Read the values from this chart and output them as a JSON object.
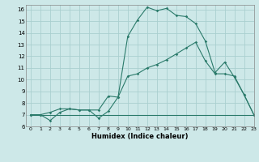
{
  "xlabel": "Humidex (Indice chaleur)",
  "background_color": "#cde8e8",
  "grid_color": "#aacfcf",
  "line_color": "#2a7a6a",
  "xlim": [
    -0.5,
    23
  ],
  "ylim": [
    6,
    16.4
  ],
  "xticks": [
    0,
    1,
    2,
    3,
    4,
    5,
    6,
    7,
    8,
    9,
    10,
    11,
    12,
    13,
    14,
    15,
    16,
    17,
    18,
    19,
    20,
    21,
    22,
    23
  ],
  "yticks": [
    6,
    7,
    8,
    9,
    10,
    11,
    12,
    13,
    14,
    15,
    16
  ],
  "line1_x": [
    0,
    1,
    2,
    3,
    4,
    5,
    6,
    7,
    8,
    9,
    10,
    11,
    12,
    13,
    14,
    15,
    16,
    17,
    18,
    19,
    20,
    21,
    22,
    23
  ],
  "line1_y": [
    7.0,
    7.0,
    7.0,
    7.0,
    7.0,
    7.0,
    7.0,
    7.0,
    7.0,
    7.0,
    7.0,
    7.0,
    7.0,
    7.0,
    7.0,
    7.0,
    7.0,
    7.0,
    7.0,
    7.0,
    7.0,
    7.0,
    7.0,
    7.0
  ],
  "line2_x": [
    0,
    1,
    2,
    3,
    4,
    5,
    6,
    7,
    8,
    9,
    10,
    11,
    12,
    13,
    14,
    15,
    16,
    17,
    18,
    19,
    20,
    21,
    22,
    23
  ],
  "line2_y": [
    7.0,
    7.0,
    7.2,
    7.5,
    7.5,
    7.4,
    7.4,
    7.4,
    8.6,
    8.5,
    10.3,
    10.5,
    11.0,
    11.3,
    11.7,
    12.2,
    12.7,
    13.2,
    11.6,
    10.5,
    10.5,
    10.3,
    8.7,
    7.0
  ],
  "line3_x": [
    0,
    1,
    2,
    3,
    4,
    5,
    6,
    7,
    8,
    9,
    10,
    11,
    12,
    13,
    14,
    15,
    16,
    17,
    18,
    19,
    20,
    21,
    22,
    23
  ],
  "line3_y": [
    7.0,
    7.0,
    6.5,
    7.2,
    7.5,
    7.4,
    7.4,
    6.7,
    7.3,
    8.5,
    13.7,
    15.1,
    16.2,
    15.9,
    16.1,
    15.5,
    15.4,
    14.8,
    13.3,
    10.6,
    11.5,
    10.2,
    8.7,
    7.0
  ]
}
